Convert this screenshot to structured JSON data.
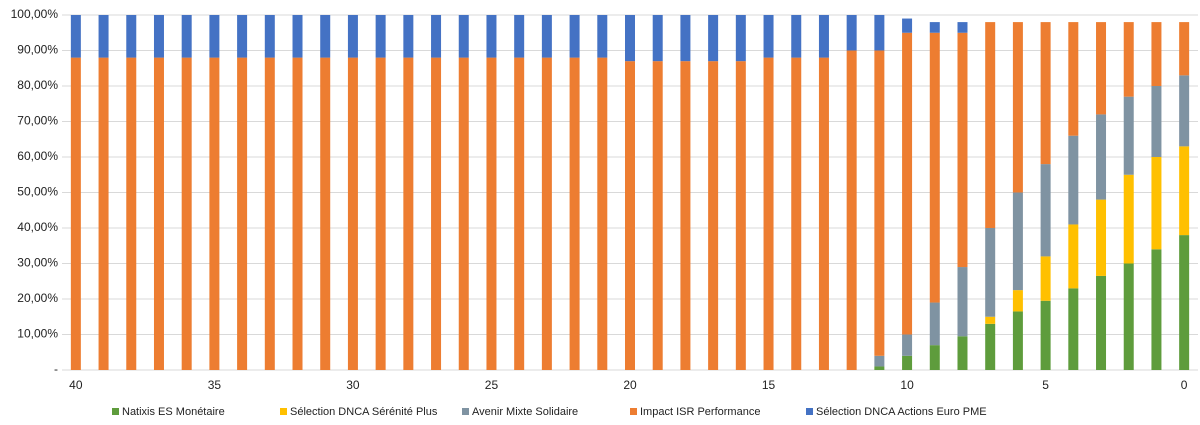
{
  "chart_data": {
    "type": "stacked-bar",
    "categories": [
      "40",
      null,
      null,
      null,
      null,
      "35",
      null,
      null,
      null,
      null,
      "30",
      null,
      null,
      null,
      null,
      "25",
      null,
      null,
      null,
      null,
      "20",
      null,
      null,
      null,
      null,
      "15",
      null,
      null,
      null,
      null,
      "10",
      null,
      null,
      null,
      null,
      "5",
      null,
      null,
      null,
      null,
      "0"
    ],
    "series": [
      {
        "name": "Natixis ES Monétaire",
        "color": "#5e9c3c",
        "values": [
          0,
          0,
          0,
          0,
          0,
          0,
          0,
          0,
          0,
          0,
          0,
          0,
          0,
          0,
          0,
          0,
          0,
          0,
          0,
          0,
          0,
          0,
          0,
          0,
          0,
          0,
          0,
          0,
          0,
          1,
          4,
          7,
          9.5,
          13,
          16.5,
          19.5,
          23,
          26.5,
          30,
          34,
          38
        ]
      },
      {
        "name": "Sélection DNCA Sérénité Plus",
        "color": "#ffc000",
        "values": [
          0,
          0,
          0,
          0,
          0,
          0,
          0,
          0,
          0,
          0,
          0,
          0,
          0,
          0,
          0,
          0,
          0,
          0,
          0,
          0,
          0,
          0,
          0,
          0,
          0,
          0,
          0,
          0,
          0,
          0,
          0,
          0,
          0,
          2,
          6,
          12.5,
          18,
          21.5,
          25,
          26,
          25
        ]
      },
      {
        "name": "Avenir Mixte Solidaire",
        "color": "#7f93a2",
        "values": [
          0,
          0,
          0,
          0,
          0,
          0,
          0,
          0,
          0,
          0,
          0,
          0,
          0,
          0,
          0,
          0,
          0,
          0,
          0,
          0,
          0,
          0,
          0,
          0,
          0,
          0,
          0,
          0,
          0,
          3,
          6,
          12,
          19.5,
          25,
          27.5,
          26,
          25,
          24,
          22,
          20,
          20
        ]
      },
      {
        "name": "Impact ISR Performance",
        "color": "#ed7d31",
        "values": [
          88,
          88,
          88,
          88,
          88,
          88,
          88,
          88,
          88,
          88,
          88,
          88,
          88,
          88,
          88,
          88,
          88,
          88,
          88,
          88,
          87,
          87,
          87,
          87,
          87,
          88,
          88,
          88,
          90,
          86,
          85,
          76,
          66,
          58,
          48,
          40,
          32,
          26,
          21,
          18,
          15
        ]
      },
      {
        "name": "Sélection DNCA Actions Euro PME",
        "color": "#4472c4",
        "values": [
          12,
          12,
          12,
          12,
          12,
          12,
          12,
          12,
          12,
          12,
          12,
          12,
          12,
          12,
          12,
          12,
          12,
          12,
          12,
          12,
          13,
          13,
          13,
          13,
          13,
          12,
          12,
          12,
          10,
          10,
          4,
          3,
          3,
          0,
          0,
          0,
          0,
          0,
          0,
          0,
          0
        ]
      }
    ],
    "ylim": [
      0,
      100
    ],
    "yticks": [
      {
        "value": 0,
        "label": "-"
      },
      {
        "value": 10,
        "label": "10,00%"
      },
      {
        "value": 20,
        "label": "20,00%"
      },
      {
        "value": 30,
        "label": "30,00%"
      },
      {
        "value": 40,
        "label": "40,00%"
      },
      {
        "value": 50,
        "label": "50,00%"
      },
      {
        "value": 60,
        "label": "60,00%"
      },
      {
        "value": 70,
        "label": "70,00%"
      },
      {
        "value": 80,
        "label": "80,00%"
      },
      {
        "value": 90,
        "label": "90,00%"
      },
      {
        "value": 100,
        "label": "100,00%"
      }
    ],
    "grid": true,
    "legend": "bottom"
  }
}
